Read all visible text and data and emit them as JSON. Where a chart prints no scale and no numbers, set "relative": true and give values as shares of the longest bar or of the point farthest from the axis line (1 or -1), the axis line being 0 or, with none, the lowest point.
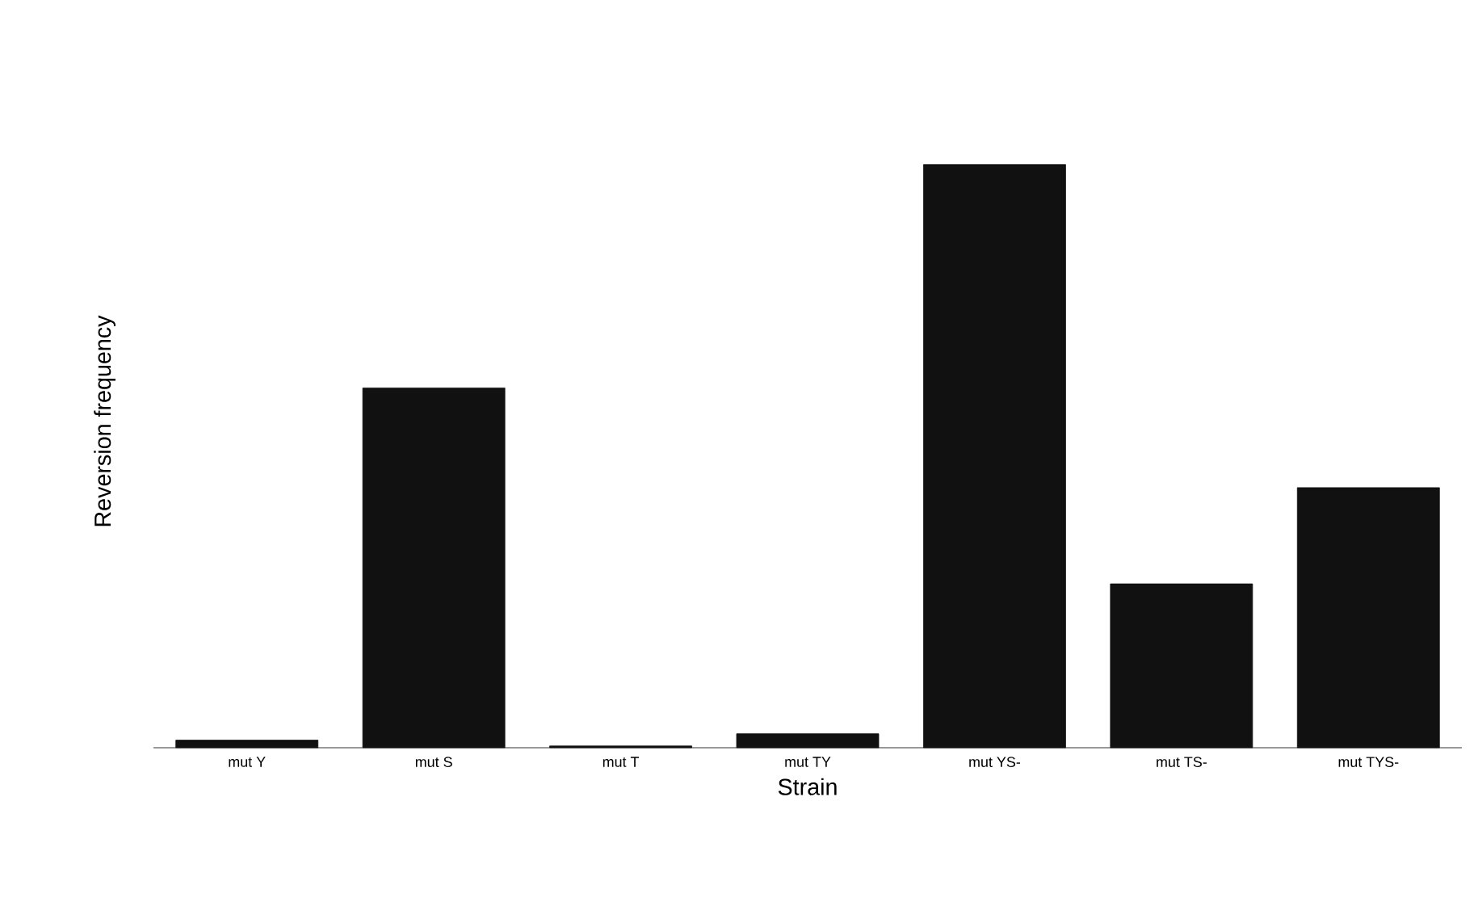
{
  "chart_data": {
    "type": "bar",
    "xlabel": "Strain",
    "ylabel": "Reversion frequency",
    "categories": [
      "mut Y",
      "mut S",
      "mut T",
      "mut TY",
      "mut YS-",
      "mut TS-",
      "mut TYS-"
    ],
    "values": [
      0.013,
      0.617,
      0.003,
      0.024,
      1,
      0.281,
      0.446
    ],
    "color": "#111111",
    "relative": true
  }
}
